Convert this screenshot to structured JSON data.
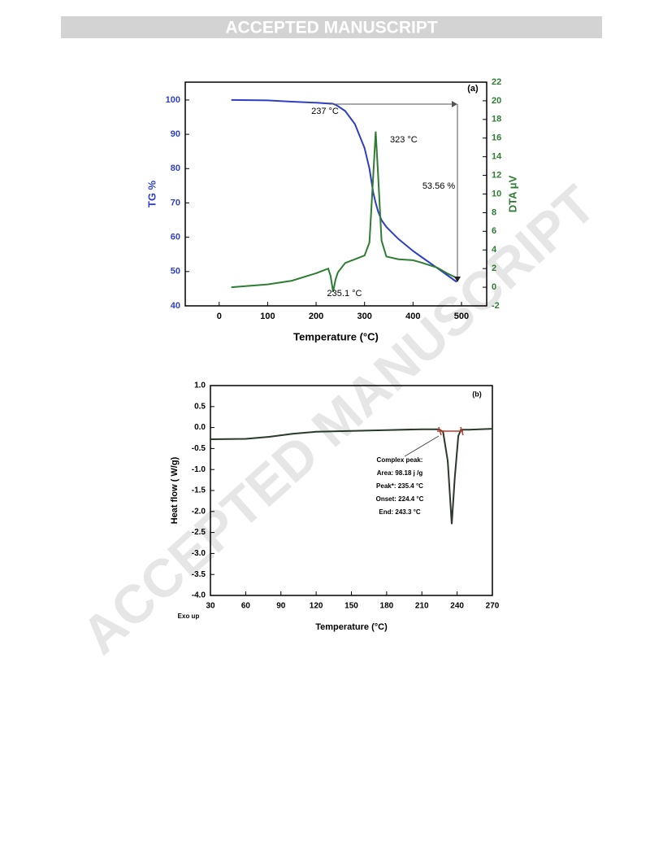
{
  "header": "ACCEPTED MANUSCRIPT",
  "watermark": "ACCEPTED MANUSCRIPT",
  "chart_data": [
    {
      "type": "line",
      "xlabel": "Temperature (°C)",
      "ylabel": "TG %",
      "y2label": "DTA μV",
      "annotations": [
        "(a)",
        "237 °C",
        "323 °C",
        "53.56 %",
        "235.1 °C"
      ],
      "x": [
        25,
        100,
        150,
        200,
        225,
        230,
        235.1,
        240,
        245,
        260,
        280,
        300,
        310,
        318,
        323,
        328,
        335,
        345,
        370,
        400,
        420,
        450,
        470,
        490
      ],
      "series": [
        {
          "name": "TG",
          "color": "#2f3fc4",
          "axis": "y",
          "values": [
            100,
            99.9,
            99.5,
            99.2,
            99.0,
            99.0,
            98.9,
            98.6,
            98.2,
            96.8,
            93,
            86,
            80,
            73,
            70,
            67.5,
            65,
            63,
            59.5,
            56,
            54,
            51,
            49,
            47
          ]
        },
        {
          "name": "DTA",
          "color": "#2e7d32",
          "axis": "y2",
          "values": [
            0,
            0.3,
            0.7,
            1.5,
            2.0,
            1.2,
            -0.5,
            0.8,
            1.6,
            2.6,
            3.0,
            3.4,
            4.8,
            12,
            16.7,
            12,
            5,
            3.3,
            3,
            2.9,
            2.6,
            2.1,
            1.5,
            1.0
          ]
        }
      ],
      "xlim": [
        -70,
        552
      ],
      "xticks": [
        0,
        100,
        200,
        300,
        400,
        500
      ],
      "ylim": [
        40,
        105.2
      ],
      "yticks": [
        40,
        50,
        60,
        70,
        80,
        90,
        100
      ],
      "y2lim": [
        -2,
        22
      ],
      "y2ticks": [
        -2,
        0,
        2,
        4,
        6,
        8,
        10,
        12,
        14,
        16,
        18,
        20,
        22
      ],
      "ycolor": "#2f3fc4",
      "y2color": "#2e7d32"
    },
    {
      "type": "line",
      "xlabel": "Temperature (°C)",
      "ylabel": "Heat flow ( W/g)",
      "annotations": [
        "(b)",
        "Complex peak:",
        "Area:  98.18 j /g",
        "Peak*: 235.4  °C",
        "Onset: 224.4 °C",
        "End: 243.3 °C",
        "Exo up"
      ],
      "x": [
        30,
        60,
        80,
        100,
        120,
        150,
        180,
        210,
        224.4,
        228,
        232,
        235.4,
        238,
        241,
        243.3,
        250,
        270
      ],
      "series": [
        {
          "name": "Heat flow",
          "color": "#2a3a2a",
          "axis": "y",
          "values": [
            -0.28,
            -0.27,
            -0.22,
            -0.15,
            -0.1,
            -0.08,
            -0.06,
            -0.04,
            -0.04,
            -0.1,
            -0.8,
            -2.3,
            -1.2,
            -0.2,
            -0.05,
            -0.05,
            -0.03
          ]
        }
      ],
      "xlim": [
        30,
        270
      ],
      "xticks": [
        30,
        60,
        90,
        120,
        150,
        180,
        210,
        240,
        270
      ],
      "ylim": [
        -4,
        1
      ],
      "yticks": [
        {
          "value": -4,
          "label": "-4.0"
        },
        -3.5,
        {
          "value": -3,
          "label": "-3.0"
        },
        -2.5,
        {
          "value": -2,
          "label": "-2.0"
        },
        -1.5,
        {
          "value": -1,
          "label": "-1.0"
        },
        -0.5,
        {
          "value": 0,
          "label": "0.0"
        },
        0.5,
        {
          "value": 1,
          "label": "1.0"
        }
      ],
      "ycolor": "#000000"
    }
  ]
}
